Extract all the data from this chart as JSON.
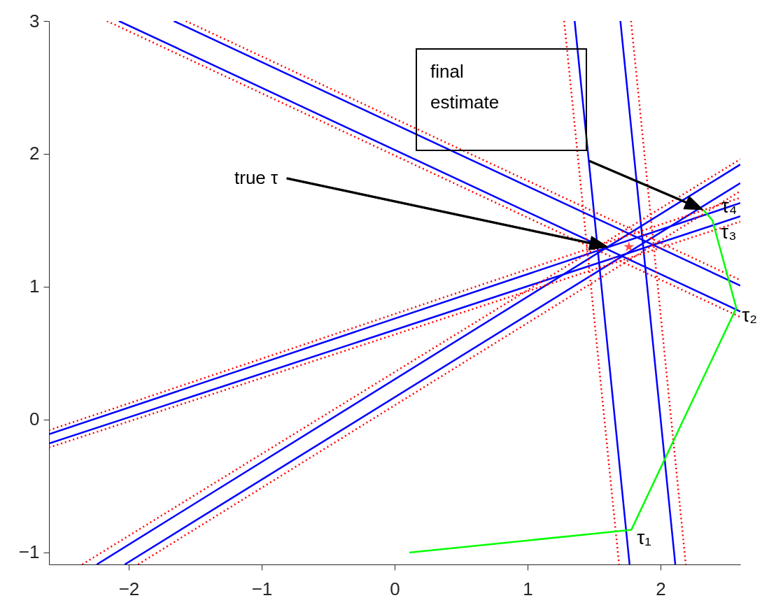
{
  "chart_data": {
    "type": "line",
    "xlim": [
      -2.6,
      2.6
    ],
    "ylim": [
      -1.09,
      3
    ],
    "xticks": [
      -2,
      -1,
      0,
      1,
      2
    ],
    "yticks": [
      -1,
      0,
      1,
      2,
      3
    ],
    "series": [
      {
        "color": "#0000ff",
        "x": [
          1.354,
          1.767
        ],
        "values": [
          3,
          -1.09
        ]
      },
      {
        "color": "#0000ff",
        "x": [
          1.698,
          2.111
        ],
        "values": [
          3,
          -1.09
        ]
      },
      {
        "color": "#0000ff",
        "x": [
          -2.074,
          2.6
        ],
        "values": [
          3,
          0.814
        ]
      },
      {
        "color": "#0000ff",
        "x": [
          -1.661,
          2.6
        ],
        "values": [
          3,
          1.008
        ]
      },
      {
        "color": "#0000ff",
        "x": [
          -2.24,
          2.6
        ],
        "values": [
          -1.09,
          1.92
        ]
      },
      {
        "color": "#0000ff",
        "x": [
          -2.03,
          2.6
        ],
        "values": [
          -1.09,
          1.78
        ]
      },
      {
        "color": "#0000ff",
        "x": [
          -2.6,
          2.6
        ],
        "values": [
          -0.11,
          1.63
        ]
      },
      {
        "color": "#0000ff",
        "x": [
          -2.6,
          2.6
        ],
        "values": [
          -0.18,
          1.53
        ]
      },
      {
        "color": "#ff0000",
        "line_style": "dotted",
        "x": [
          1.275,
          1.688
        ],
        "values": [
          3,
          -1.09
        ]
      },
      {
        "color": "#ff0000",
        "line_style": "dotted",
        "x": [
          1.778,
          2.19
        ],
        "values": [
          3,
          -1.09
        ]
      },
      {
        "color": "#ff0000",
        "line_style": "dotted",
        "x": [
          -2.164,
          2.6
        ],
        "values": [
          3,
          0.772
        ]
      },
      {
        "color": "#ff0000",
        "line_style": "dotted",
        "x": [
          -1.571,
          2.6
        ],
        "values": [
          3,
          1.05
        ]
      },
      {
        "color": "#ff0000",
        "line_style": "dotted",
        "x": [
          -2.35,
          2.6
        ],
        "values": [
          -1.09,
          1.96
        ]
      },
      {
        "color": "#ff0000",
        "line_style": "dotted",
        "x": [
          -1.93,
          2.6
        ],
        "values": [
          -1.09,
          1.72
        ]
      },
      {
        "color": "#ff0000",
        "line_style": "dotted",
        "x": [
          -2.6,
          2.6
        ],
        "values": [
          -0.08,
          1.67
        ]
      },
      {
        "color": "#ff0000",
        "line_style": "dotted",
        "x": [
          -2.6,
          2.6
        ],
        "values": [
          -0.21,
          1.49
        ]
      },
      {
        "color": "#00ff00",
        "x": [
          0.11,
          1.78,
          2.57,
          2.39,
          2.32
        ],
        "values": [
          -1.0,
          -0.83,
          0.84,
          1.5,
          1.58
        ]
      },
      {
        "type": "scatter",
        "marker": "star",
        "color": "#ff0000",
        "x": [
          1.762
        ],
        "values": [
          1.3
        ]
      }
    ],
    "annotations": [
      "true τ",
      "final estimate",
      {
        "text": "τ₁",
        "x": 1.78,
        "y": -0.83
      },
      {
        "text": "τ₂",
        "x": 2.57,
        "y": 0.84
      },
      {
        "text": "τ₃",
        "x": 2.39,
        "y": 1.5
      },
      {
        "text": "τ₄",
        "x": 2.32,
        "y": 1.58
      }
    ]
  }
}
